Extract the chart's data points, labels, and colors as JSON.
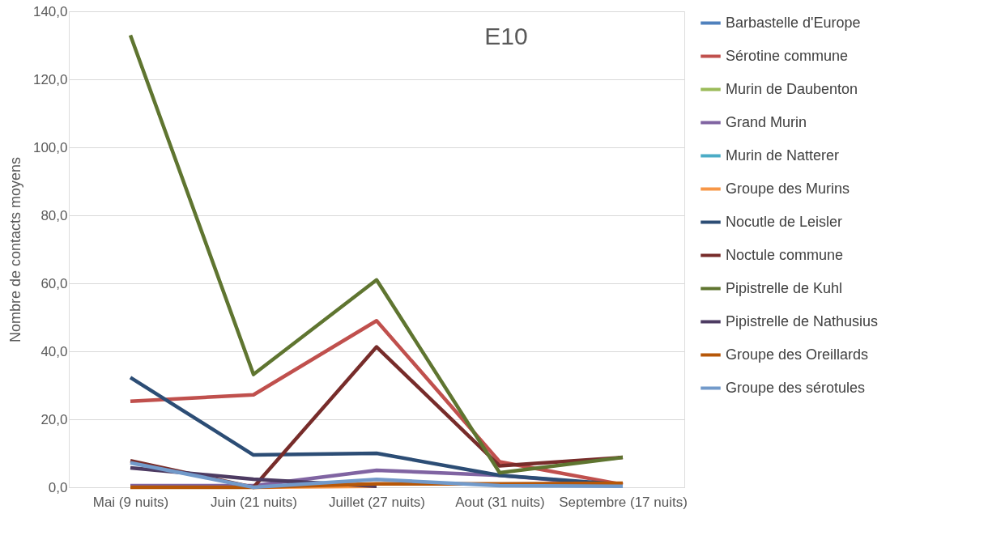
{
  "chart_data": {
    "type": "line",
    "title": "E10",
    "ylabel": "Nombre de contacts moyens",
    "categories": [
      "Mai (9 nuits)",
      "Juin (21 nuits)",
      "Juillet (27 nuits)",
      "Aout (31 nuits)",
      "Septembre (17 nuits)"
    ],
    "ylim": [
      0,
      140
    ],
    "yticks": [
      {
        "value": 0,
        "label": "0,0"
      },
      {
        "value": 20,
        "label": "20,0"
      },
      {
        "value": 40,
        "label": "40,0"
      },
      {
        "value": 60,
        "label": "60,0"
      },
      {
        "value": 80,
        "label": "80,0"
      },
      {
        "value": 100,
        "label": "100,0"
      },
      {
        "value": 120,
        "label": "120,0"
      },
      {
        "value": 140,
        "label": "140,0"
      }
    ],
    "grid": "y",
    "legend": "right",
    "marker": "none",
    "line_style": "solid",
    "series": [
      {
        "name": "Barbastelle d'Europe",
        "color": "#4f81bd",
        "values": [
          null,
          null,
          null,
          null,
          null
        ]
      },
      {
        "name": "Sérotine commune",
        "color": "#c0504d",
        "values": [
          25.3,
          27.2,
          49.0,
          7.5,
          0.8
        ]
      },
      {
        "name": "Murin de Daubenton",
        "color": "#9bbb59",
        "values": [
          null,
          null,
          null,
          null,
          null
        ]
      },
      {
        "name": "Grand Murin",
        "color": "#8064a2",
        "values": [
          0.5,
          0.5,
          5.0,
          3.5,
          0.5
        ]
      },
      {
        "name": "Murin de Natterer",
        "color": "#4bacc6",
        "values": [
          null,
          null,
          null,
          null,
          null
        ]
      },
      {
        "name": "Groupe des Murins",
        "color": "#f79646",
        "values": [
          null,
          0,
          0.3,
          null,
          null
        ]
      },
      {
        "name": "Nocutle de Leisler",
        "color": "#2c4d75",
        "values": [
          32.3,
          9.5,
          10.0,
          3.5,
          0.8
        ]
      },
      {
        "name": "Noctule commune",
        "color": "#772c2a",
        "values": [
          7.8,
          0.0,
          41.3,
          6.3,
          8.8
        ]
      },
      {
        "name": "Pipistrelle de Kuhl",
        "color": "#5f7530",
        "values": [
          133.0,
          33.2,
          61.0,
          4.3,
          8.8
        ]
      },
      {
        "name": "Pipistrelle de Nathusius",
        "color": "#4d3b62",
        "values": [
          5.7,
          2.4,
          0.3,
          null,
          null
        ]
      },
      {
        "name": "Groupe des Oreillards",
        "color": "#b65708",
        "values": [
          0,
          0,
          1.0,
          1.0,
          1.2
        ]
      },
      {
        "name": "Groupe des sérotules",
        "color": "#729aca",
        "values": [
          7.2,
          0,
          2.3,
          0.5,
          0.3
        ]
      }
    ]
  }
}
